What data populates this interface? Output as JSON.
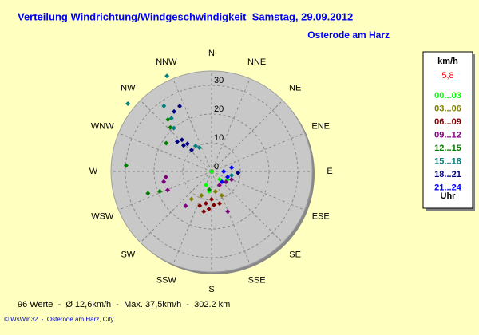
{
  "chart_data": {
    "type": "polar-scatter",
    "title": "Verteilung Windrichtung/Windgeschwindigkeit  Samstag, 29.09.2012",
    "subtitle": "Osterode am Harz",
    "directions": [
      "N",
      "NNE",
      "NE",
      "ENE",
      "E",
      "ESE",
      "SE",
      "SSE",
      "S",
      "SSW",
      "SW",
      "WSW",
      "W",
      "WNW",
      "NW",
      "NNW"
    ],
    "rlim": [
      0,
      35
    ],
    "rticks": [
      0,
      10,
      20,
      30
    ],
    "grid": true,
    "legend_title": "km/h",
    "legend_value": "5,8",
    "legend_unit": "Uhr",
    "legend": "right",
    "series": [
      {
        "name": "00...03",
        "color": "#00ff00",
        "x": [
          0,
          187,
          135,
          202,
          117
        ],
        "values": [
          0,
          7,
          3.9,
          5.1,
          6.2
        ]
      },
      {
        "name": "03...06",
        "color": "#808000",
        "x": [
          216,
          157,
          203,
          169
        ],
        "values": [
          11.9,
          9.1,
          9.1,
          7.1
        ]
      },
      {
        "name": "06...09",
        "color": "#800000",
        "x": [
          184,
          176,
          190,
          191,
          166,
          199,
          180
        ],
        "values": [
          13.1,
          11.7,
          11.3,
          14.2,
          11.5,
          12.6,
          9.7
        ]
      },
      {
        "name": "09...12",
        "color": "#800080",
        "x": [
          258,
          247,
          263,
          217,
          158,
          150,
          126,
          112
        ],
        "values": [
          17,
          16.6,
          16,
          15,
          15,
          5.5,
          6.2,
          7.5
        ]
      },
      {
        "name": "12...15",
        "color": "#008000",
        "x": [
          274,
          317,
          302,
          320,
          251,
          249,
          187
        ],
        "values": [
          29.8,
          21,
          18.6,
          23.6,
          23.4,
          19.3,
          6.4
        ]
      },
      {
        "name": "15...18",
        "color": "#008080",
        "x": [
          335,
          309,
          324,
          323,
          319,
          328,
          333,
          101
        ],
        "values": [
          36.7,
          37.5,
          28.2,
          23.2,
          20,
          10.5,
          9.3,
          7.1
        ]
      },
      {
        "name": "18...21",
        "color": "#000080",
        "x": [
          334,
          328,
          317,
          319,
          313,
          317,
          311,
          93
        ],
        "values": [
          25.3,
          24.6,
          15.1,
          12.8,
          13.3,
          10.2,
          15.8,
          9.2
        ]
      },
      {
        "name": "21...24",
        "color": "#0000ff",
        "x": [
          109,
          90,
          79,
          135
        ],
        "values": [
          5.9,
          4.2,
          7.1,
          5.1
        ]
      }
    ],
    "footer": [
      "96 Werte  -  Ø 12,6km/h  -  Max. 37,5km/h  -  302.2 km",
      "© WsWin32  -  Osterode am Harz, City"
    ]
  }
}
